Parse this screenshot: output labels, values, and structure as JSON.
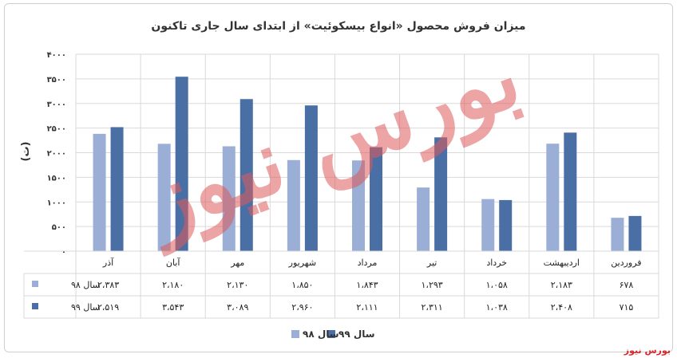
{
  "title": "میزان فروش محصول «انواع بیسکوئیت» از ابتدای سال جاری تاکنون",
  "unit_label": "(ت)",
  "watermark": "بورس نیوز",
  "source_logo": "بورس نیوز",
  "colors": {
    "series1": "#9aaed6",
    "series2": "#4a6fa5",
    "grid": "#d9d9d9",
    "watermark": "#e05a5a"
  },
  "chart_data": {
    "type": "bar",
    "categories": [
      "آذر",
      "آبان",
      "مهر",
      "شهریور",
      "مرداد",
      "تیر",
      "خرداد",
      "اردیبهشت",
      "فروردین"
    ],
    "series": [
      {
        "name": "سال ۹۸",
        "values": [
          2383,
          2180,
          2130,
          1850,
          1843,
          1293,
          1058,
          2183,
          678
        ],
        "labels": [
          "۲،۳۸۳",
          "۲،۱۸۰",
          "۲،۱۳۰",
          "۱،۸۵۰",
          "۱،۸۴۳",
          "۱،۲۹۳",
          "۱،۰۵۸",
          "۲،۱۸۳",
          "۶۷۸"
        ]
      },
      {
        "name": "سال ۹۹",
        "values": [
          2519,
          3543,
          3089,
          2960,
          2111,
          2311,
          1038,
          2408,
          715
        ],
        "labels": [
          "۲،۵۱۹",
          "۳،۵۴۳",
          "۳،۰۸۹",
          "۲،۹۶۰",
          "۲،۱۱۱",
          "۲،۳۱۱",
          "۱،۰۳۸",
          "۲،۴۰۸",
          "۷۱۵"
        ]
      }
    ],
    "ylim": [
      0,
      4000
    ],
    "yticks": [
      0,
      500,
      1000,
      1500,
      2000,
      2500,
      3000,
      3500,
      4000
    ],
    "ytick_labels": [
      "۰",
      "۵۰۰",
      "۱۰۰۰",
      "۱۵۰۰",
      "۲۰۰۰",
      "۲۵۰۰",
      "۳۰۰۰",
      "۳۵۰۰",
      "۴۰۰۰"
    ],
    "legend_position": "bottom",
    "grid": true,
    "data_table": true
  }
}
